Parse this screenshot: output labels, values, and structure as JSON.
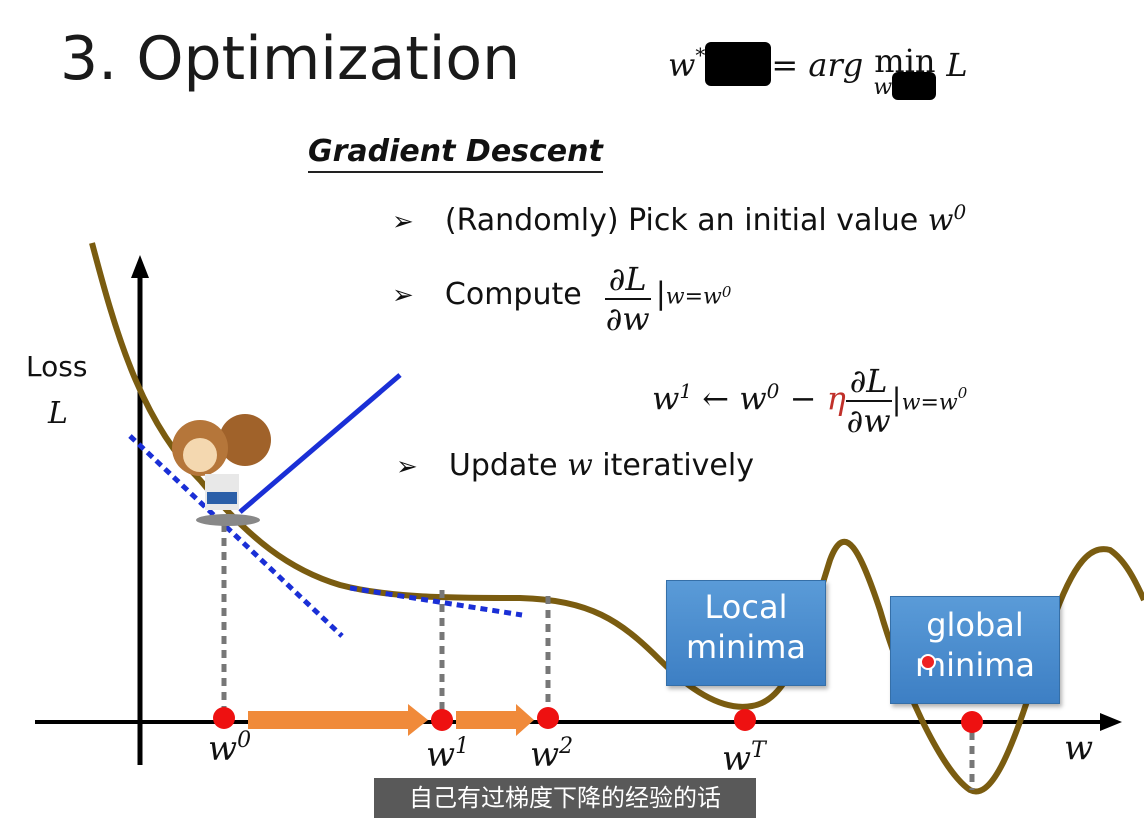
{
  "title": "3. Optimization",
  "formula": {
    "lhs": "w",
    "lhs_sup": "*",
    "rhs_arg": "arg",
    "rhs_min": "min",
    "rhs_var": "w",
    "rhs_L": "L",
    "equals": "="
  },
  "heading": "Gradient Descent",
  "bullets": [
    {
      "text": "(Randomly) Pick an initial value ",
      "math": "w",
      "sup": "0"
    },
    {
      "text": "Compute",
      "frac_num": "∂L",
      "frac_den": "∂w",
      "eval": "w=w",
      "eval_sup": "0"
    },
    {
      "text": "Update ",
      "math": "w",
      "rest": " iteratively"
    }
  ],
  "update_eq": {
    "lhs": "w",
    "lhs_sup": "1",
    "arrow": "←",
    "w0": "w",
    "w0_sup": "0",
    "minus": "−",
    "eta": "η",
    "frac_num": "∂L",
    "frac_den": "∂w",
    "eval": "w=w",
    "eval_sup": "0"
  },
  "axis": {
    "ylabel": "Loss",
    "ylabel_var": "L",
    "xlabel": "w"
  },
  "points": [
    {
      "base": "w",
      "sup": "0"
    },
    {
      "base": "w",
      "sup": "1"
    },
    {
      "base": "w",
      "sup": "2"
    },
    {
      "base": "w",
      "sup": "T"
    }
  ],
  "boxes": {
    "local": [
      "Local",
      "minima"
    ],
    "global": [
      "global",
      "minima"
    ]
  },
  "subtitle": "自己有过梯度下降的经验的话",
  "colors": {
    "curve": "#7a5c10",
    "tangent": "#1a2fd6",
    "point": "#ee1111",
    "arrow": "#f08a3a",
    "box": "#4a8ccf"
  }
}
